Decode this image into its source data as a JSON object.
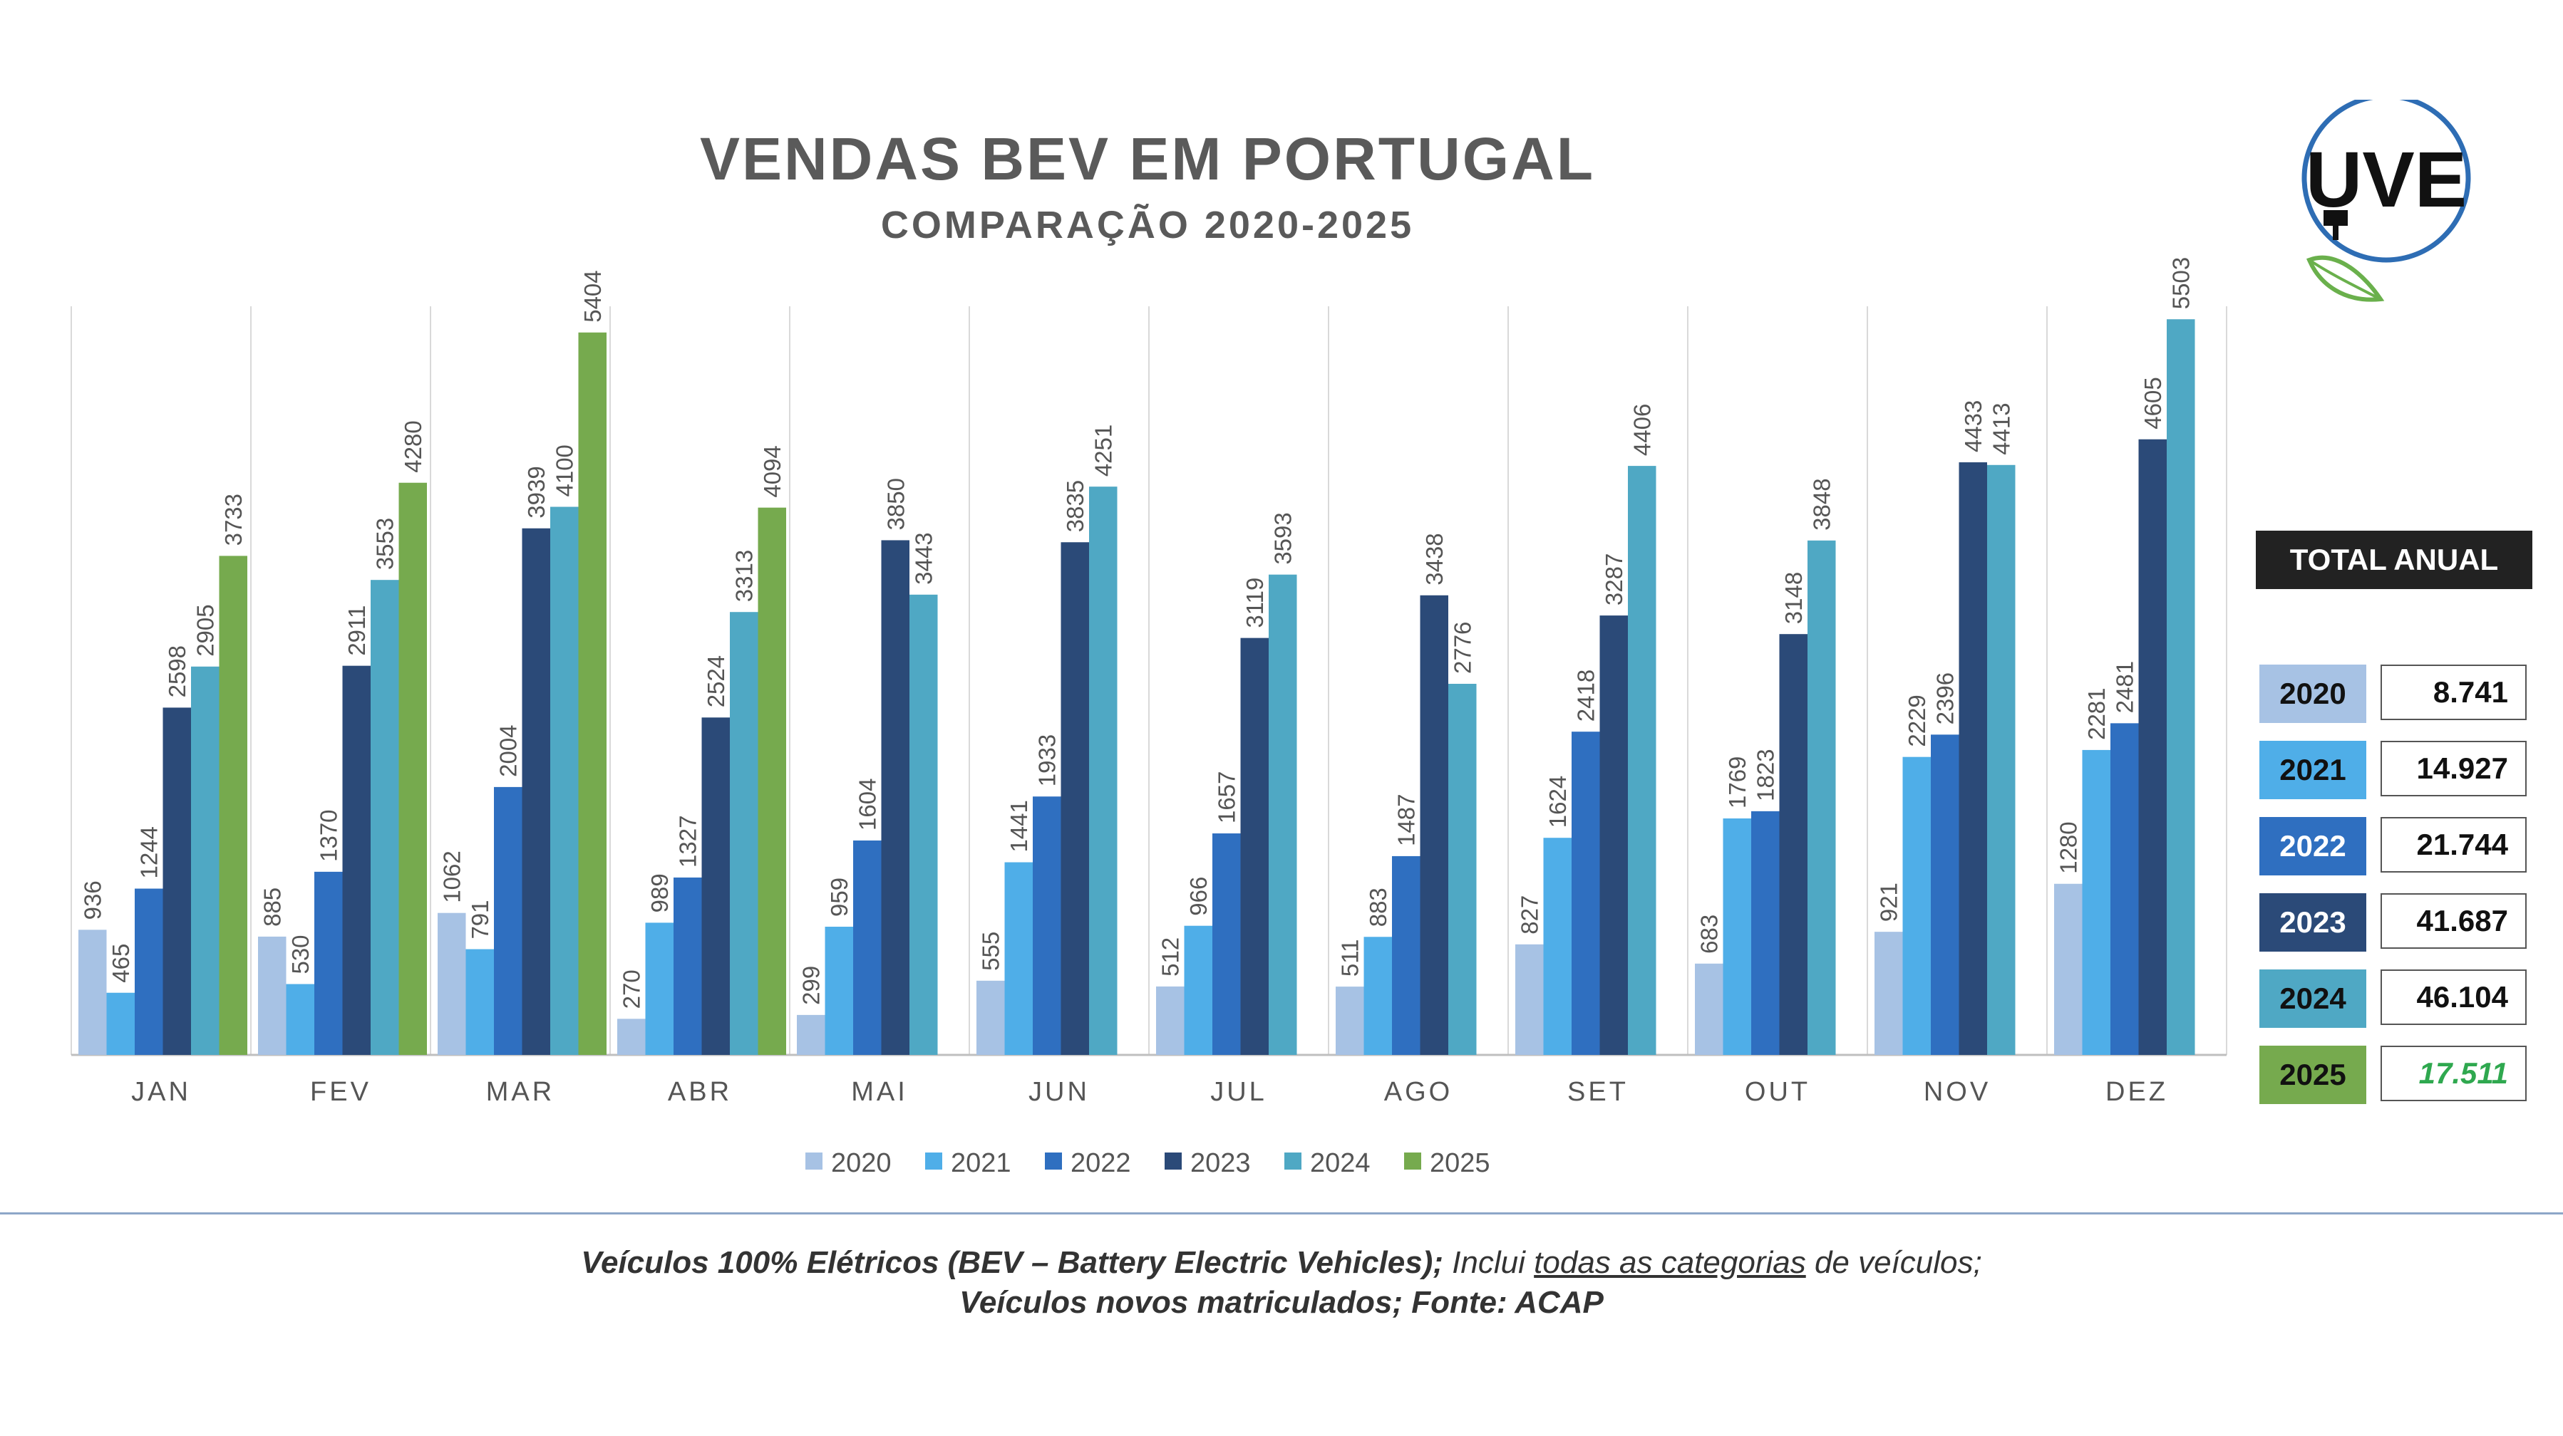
{
  "header": {
    "title": "VENDAS BEV EM PORTUGAL",
    "subtitle": "COMPARAÇÃO 2020-2025"
  },
  "logo": {
    "text": "UVE",
    "icon": "plug-leaf-logo",
    "color": "#2e6db4",
    "leaf_color": "#6ab04c"
  },
  "chart_data": {
    "type": "bar",
    "categories": [
      "JAN",
      "FEV",
      "MAR",
      "ABR",
      "MAI",
      "JUN",
      "JUL",
      "AGO",
      "SET",
      "OUT",
      "NOV",
      "DEZ"
    ],
    "series": [
      {
        "name": "2020",
        "color": "#a7c2e4",
        "values": [
          936,
          885,
          1062,
          270,
          299,
          555,
          512,
          511,
          827,
          683,
          921,
          1280
        ]
      },
      {
        "name": "2021",
        "color": "#4faee8",
        "values": [
          465,
          530,
          791,
          989,
          959,
          1441,
          966,
          883,
          1624,
          1769,
          2229,
          2281
        ]
      },
      {
        "name": "2022",
        "color": "#2f6fc0",
        "values": [
          1244,
          1370,
          2004,
          1327,
          1604,
          1933,
          1657,
          1487,
          2418,
          1823,
          2396,
          2481
        ]
      },
      {
        "name": "2023",
        "color": "#2b4a78",
        "values": [
          2598,
          2911,
          3939,
          2524,
          3850,
          3835,
          3119,
          3438,
          3287,
          3148,
          4433,
          4605
        ]
      },
      {
        "name": "2024",
        "color": "#4fa8c4",
        "values": [
          2905,
          3553,
          4100,
          3313,
          3443,
          4251,
          3593,
          2776,
          4406,
          3848,
          4413,
          5503
        ]
      },
      {
        "name": "2025",
        "color": "#76aa4e",
        "values": [
          3733,
          4280,
          5404,
          4094,
          null,
          null,
          null,
          null,
          null,
          null,
          null,
          null
        ]
      }
    ],
    "ylim": [
      0,
      6000
    ],
    "legend": "bottom"
  },
  "totals": {
    "title": "TOTAL ANUAL",
    "rows": [
      {
        "year": "2020",
        "value": "8.741",
        "color": "#a7c2e4"
      },
      {
        "year": "2021",
        "value": "14.927",
        "color": "#4faee8"
      },
      {
        "year": "2022",
        "value": "21.744",
        "color": "#2f6fc0"
      },
      {
        "year": "2023",
        "value": "41.687",
        "color": "#2b4a78"
      },
      {
        "year": "2024",
        "value": "46.104",
        "color": "#4fa8c4"
      },
      {
        "year": "2025",
        "value": "17.511",
        "color": "#76aa4e"
      }
    ]
  },
  "footer": {
    "line1_bold": "Veículos 100% Elétricos (BEV – Battery Electric Vehicles);",
    "line1_a": " Inclui ",
    "line1_underline": "todas as categorias",
    "line1_b": " de veículos;",
    "line2": "Veículos novos matriculados; Fonte: ACAP"
  }
}
